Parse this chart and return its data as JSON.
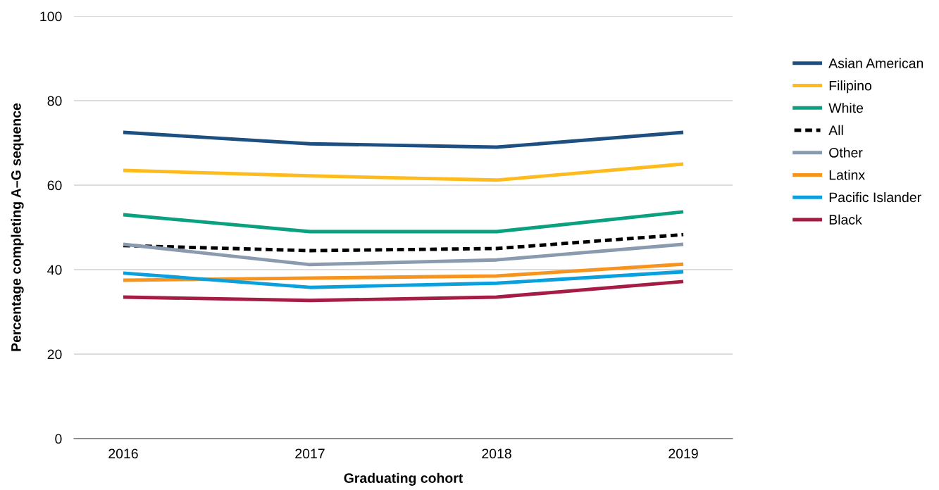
{
  "chart_data": {
    "type": "line",
    "xlabel": "Graduating cohort",
    "ylabel": "Percentage completing A–G sequence",
    "categories": [
      "2016",
      "2017",
      "2018",
      "2019"
    ],
    "ylim": [
      0,
      100
    ],
    "yticks": [
      0,
      20,
      40,
      60,
      80,
      100
    ],
    "grid": "y",
    "legend": "right",
    "marker": "none",
    "line_style": "solid",
    "series": [
      {
        "name": "Asian American",
        "color": "#1d4f80",
        "values": [
          72.5,
          69.8,
          69.0,
          72.5
        ]
      },
      {
        "name": "Filipino",
        "color": "#fdbb1e",
        "values": [
          63.5,
          62.2,
          61.2,
          65.0
        ]
      },
      {
        "name": "White",
        "color": "#0ba07f",
        "values": [
          53.0,
          49.0,
          49.0,
          53.7
        ]
      },
      {
        "name": "All",
        "color": "#000000",
        "line_style": "dashed",
        "values": [
          45.7,
          44.5,
          45.0,
          48.3
        ]
      },
      {
        "name": "Other",
        "color": "#8a9bb0",
        "values": [
          46.0,
          41.2,
          42.3,
          46.0
        ]
      },
      {
        "name": "Latinx",
        "color": "#f7941d",
        "values": [
          37.5,
          38.0,
          38.5,
          41.3
        ]
      },
      {
        "name": "Pacific Islander",
        "color": "#0aa0de",
        "values": [
          39.2,
          35.8,
          36.8,
          39.5
        ]
      },
      {
        "name": "Black",
        "color": "#a51c45",
        "values": [
          33.5,
          32.7,
          33.5,
          37.2
        ]
      }
    ]
  }
}
